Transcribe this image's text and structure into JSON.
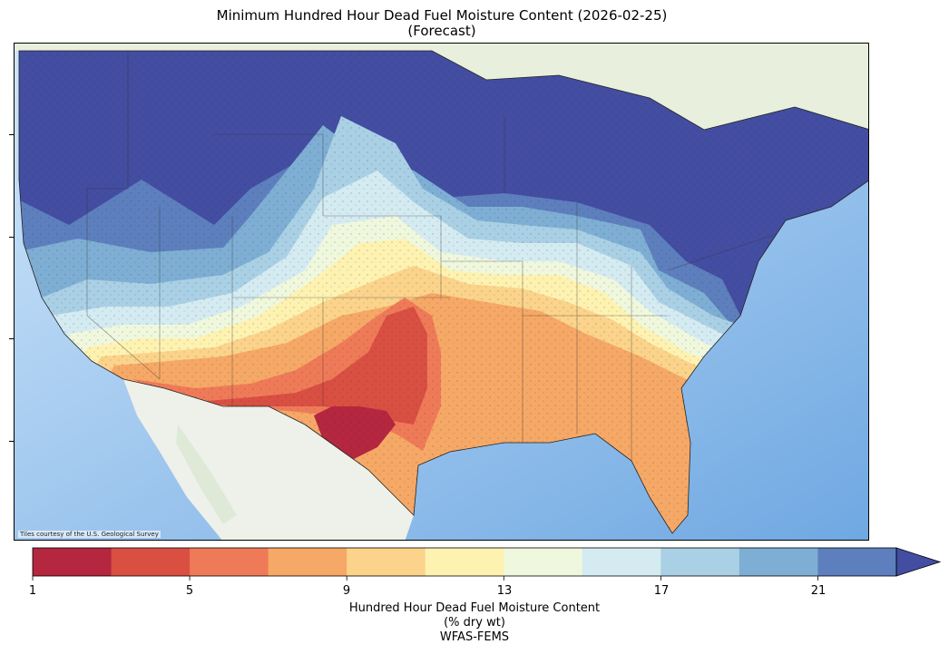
{
  "title_line1": "Minimum Hundred Hour Dead Fuel Moisture Content (2026-02-25)",
  "title_line2": "(Forecast)",
  "attribution": "Tiles courtesy of the U.S. Geological Survey",
  "colorbar": {
    "ticks": [
      "1",
      "5",
      "9",
      "13",
      "17",
      "21"
    ],
    "label_line1": "Hundred Hour Dead Fuel Moisture Content",
    "label_line2": "(% dry wt)",
    "label_line3": "WFAS-FEMS",
    "bins": [
      1,
      3,
      5,
      7,
      9,
      11,
      13,
      15,
      17,
      19,
      21,
      23
    ],
    "extend": "max",
    "colors": [
      "#b5263f",
      "#d94f42",
      "#ef7a58",
      "#f6a866",
      "#fbd38b",
      "#fef2b1",
      "#eff7dd",
      "#d4ebf2",
      "#a9d0e4",
      "#7eaed3",
      "#5d7fbd",
      "#434da1"
    ]
  },
  "colors": {
    "ocean": "#cfe4f7",
    "land_base": "#eef0ea",
    "canada": "#e8efdc",
    "lakes": "#a8cff3"
  }
}
